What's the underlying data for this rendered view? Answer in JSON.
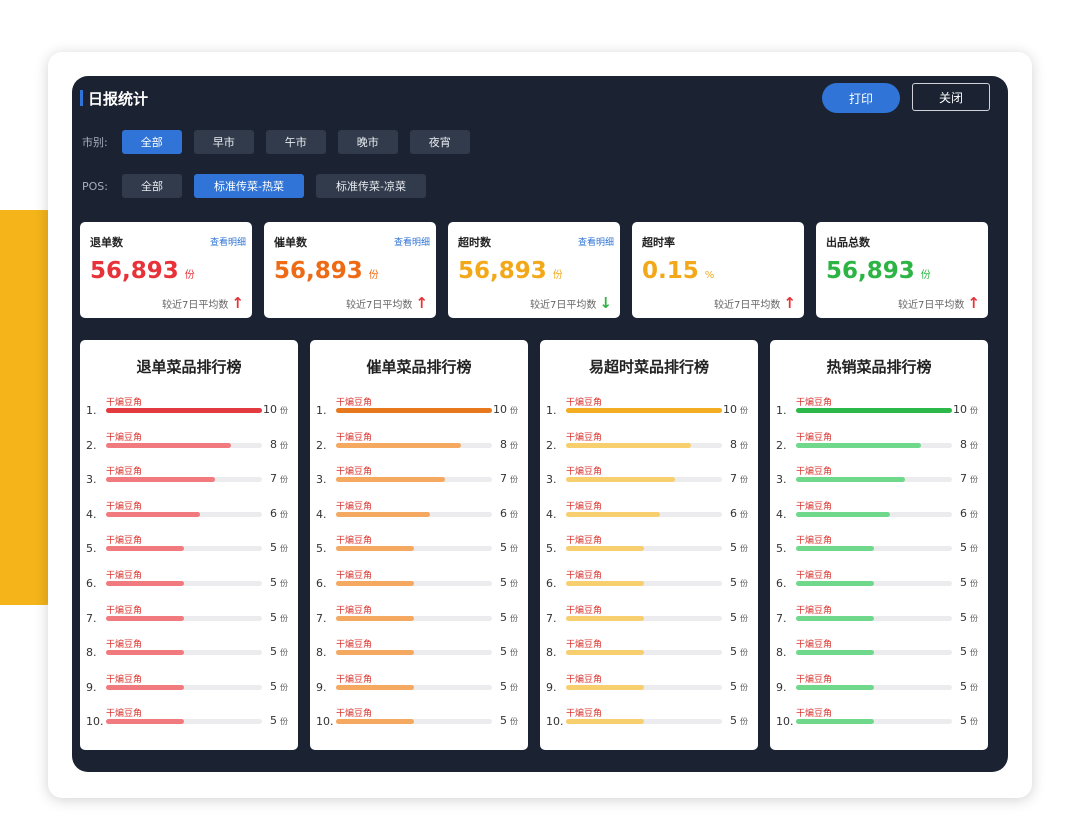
{
  "header": {
    "title": "日报统计",
    "print_label": "打印",
    "close_label": "关闭"
  },
  "filters": {
    "market": {
      "label": "市别:",
      "options": [
        "全部",
        "早市",
        "午市",
        "晚市",
        "夜宵"
      ],
      "active": 0
    },
    "pos": {
      "label": "POS:",
      "options": [
        "全部",
        "标准传菜-热菜",
        "标准传菜-凉菜"
      ],
      "active": 1
    }
  },
  "stats": [
    {
      "name": "退单数",
      "link": "查看明细",
      "value": "56,893",
      "unit": "份",
      "compare": "较近7日平均数",
      "trend": "up",
      "color": "#e8323a"
    },
    {
      "name": "催单数",
      "link": "查看明细",
      "value": "56,893",
      "unit": "份",
      "compare": "较近7日平均数",
      "trend": "up",
      "color": "#ee6a15"
    },
    {
      "name": "超时数",
      "link": "查看明细",
      "value": "56,893",
      "unit": "份",
      "compare": "较近7日平均数",
      "trend": "down",
      "color": "#f3a81a"
    },
    {
      "name": "超时率",
      "link": "",
      "value": "0.15",
      "unit": "%",
      "compare": "较近7日平均数",
      "trend": "up",
      "color": "#f3a81a"
    },
    {
      "name": "出品总数",
      "link": "",
      "value": "56,893",
      "unit": "份",
      "compare": "较近7日平均数",
      "trend": "up",
      "color": "#2cb444"
    }
  ],
  "colors": {
    "up": "#e8323a",
    "down": "#2cb444",
    "accent": "#2f74d6"
  },
  "rankings": [
    {
      "title": "退单菜品排行榜",
      "top_color": "#e23a3f",
      "color": "#f07a7e",
      "items": [
        {
          "rank": "1.",
          "name": "干煸豆角",
          "count": 10,
          "unit": "份"
        },
        {
          "rank": "2.",
          "name": "干煸豆角",
          "count": 8,
          "unit": "份"
        },
        {
          "rank": "3.",
          "name": "干煸豆角",
          "count": 7,
          "unit": "份"
        },
        {
          "rank": "4.",
          "name": "干煸豆角",
          "count": 6,
          "unit": "份"
        },
        {
          "rank": "5.",
          "name": "干煸豆角",
          "count": 5,
          "unit": "份"
        },
        {
          "rank": "6.",
          "name": "干煸豆角",
          "count": 5,
          "unit": "份"
        },
        {
          "rank": "7.",
          "name": "干煸豆角",
          "count": 5,
          "unit": "份"
        },
        {
          "rank": "8.",
          "name": "干煸豆角",
          "count": 5,
          "unit": "份"
        },
        {
          "rank": "9.",
          "name": "干煸豆角",
          "count": 5,
          "unit": "份"
        },
        {
          "rank": "10.",
          "name": "干煸豆角",
          "count": 5,
          "unit": "份"
        }
      ]
    },
    {
      "title": "催单菜品排行榜",
      "top_color": "#e8781e",
      "color": "#f5a860",
      "items": [
        {
          "rank": "1.",
          "name": "干煸豆角",
          "count": 10,
          "unit": "份"
        },
        {
          "rank": "2.",
          "name": "干煸豆角",
          "count": 8,
          "unit": "份"
        },
        {
          "rank": "3.",
          "name": "干煸豆角",
          "count": 7,
          "unit": "份"
        },
        {
          "rank": "4.",
          "name": "干煸豆角",
          "count": 6,
          "unit": "份"
        },
        {
          "rank": "5.",
          "name": "干煸豆角",
          "count": 5,
          "unit": "份"
        },
        {
          "rank": "6.",
          "name": "干煸豆角",
          "count": 5,
          "unit": "份"
        },
        {
          "rank": "7.",
          "name": "干煸豆角",
          "count": 5,
          "unit": "份"
        },
        {
          "rank": "8.",
          "name": "干煸豆角",
          "count": 5,
          "unit": "份"
        },
        {
          "rank": "9.",
          "name": "干煸豆角",
          "count": 5,
          "unit": "份"
        },
        {
          "rank": "10.",
          "name": "干煸豆角",
          "count": 5,
          "unit": "份"
        }
      ]
    },
    {
      "title": "易超时菜品排行榜",
      "top_color": "#f2ad22",
      "color": "#f7cf6e",
      "items": [
        {
          "rank": "1.",
          "name": "干煸豆角",
          "count": 10,
          "unit": "份"
        },
        {
          "rank": "2.",
          "name": "干煸豆角",
          "count": 8,
          "unit": "份"
        },
        {
          "rank": "3.",
          "name": "干煸豆角",
          "count": 7,
          "unit": "份"
        },
        {
          "rank": "4.",
          "name": "干煸豆角",
          "count": 6,
          "unit": "份"
        },
        {
          "rank": "5.",
          "name": "干煸豆角",
          "count": 5,
          "unit": "份"
        },
        {
          "rank": "6.",
          "name": "干煸豆角",
          "count": 5,
          "unit": "份"
        },
        {
          "rank": "7.",
          "name": "干煸豆角",
          "count": 5,
          "unit": "份"
        },
        {
          "rank": "8.",
          "name": "干煸豆角",
          "count": 5,
          "unit": "份"
        },
        {
          "rank": "9.",
          "name": "干煸豆角",
          "count": 5,
          "unit": "份"
        },
        {
          "rank": "10.",
          "name": "干煸豆角",
          "count": 5,
          "unit": "份"
        }
      ]
    },
    {
      "title": "热销菜品排行榜",
      "top_color": "#2db84a",
      "color": "#6fd88a",
      "items": [
        {
          "rank": "1.",
          "name": "干煸豆角",
          "count": 10,
          "unit": "份"
        },
        {
          "rank": "2.",
          "name": "干煸豆角",
          "count": 8,
          "unit": "份"
        },
        {
          "rank": "3.",
          "name": "干煸豆角",
          "count": 7,
          "unit": "份"
        },
        {
          "rank": "4.",
          "name": "干煸豆角",
          "count": 6,
          "unit": "份"
        },
        {
          "rank": "5.",
          "name": "干煸豆角",
          "count": 5,
          "unit": "份"
        },
        {
          "rank": "6.",
          "name": "干煸豆角",
          "count": 5,
          "unit": "份"
        },
        {
          "rank": "7.",
          "name": "干煸豆角",
          "count": 5,
          "unit": "份"
        },
        {
          "rank": "8.",
          "name": "干煸豆角",
          "count": 5,
          "unit": "份"
        },
        {
          "rank": "9.",
          "name": "干煸豆角",
          "count": 5,
          "unit": "份"
        },
        {
          "rank": "10.",
          "name": "干煸豆角",
          "count": 5,
          "unit": "份"
        }
      ]
    }
  ]
}
